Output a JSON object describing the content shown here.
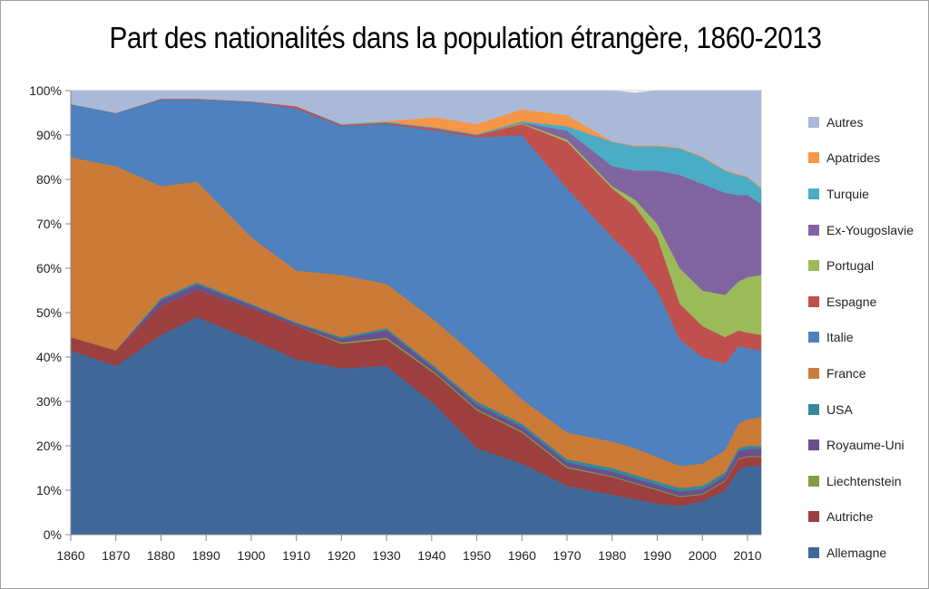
{
  "chart_data": {
    "type": "area",
    "stacked": true,
    "title": "Part des nationalités dans la population étrangère, 1860-2013",
    "xlabel": "",
    "ylabel": "",
    "xlim": [
      1860,
      2013
    ],
    "ylim": [
      0,
      100
    ],
    "x_ticks": [
      "1860",
      "1870",
      "1880",
      "1890",
      "1900",
      "1910",
      "1920",
      "1930",
      "1940",
      "1950",
      "1960",
      "1970",
      "1980",
      "1990",
      "2000",
      "2010"
    ],
    "y_ticks": [
      "0%",
      "10%",
      "20%",
      "30%",
      "40%",
      "50%",
      "60%",
      "70%",
      "80%",
      "90%",
      "100%"
    ],
    "legend_position": "right",
    "x": [
      1860,
      1870,
      1880,
      1888,
      1900,
      1910,
      1920,
      1930,
      1941,
      1950,
      1960,
      1970,
      1980,
      1985,
      1990,
      1995,
      2000,
      2005,
      2008,
      2010,
      2013
    ],
    "series": [
      {
        "name": "Allemagne",
        "color": "#3f6899",
        "values": [
          41.5,
          38,
          45,
          49,
          44,
          39.5,
          37.5,
          38,
          29,
          19.5,
          16,
          11,
          9,
          8,
          7,
          6.5,
          7.5,
          10,
          14.5,
          15.5,
          15.5
        ]
      },
      {
        "name": "Autriche",
        "color": "#9c3f3e",
        "values": [
          3,
          3.5,
          6.5,
          6,
          7,
          7.5,
          5.5,
          6,
          7,
          8.5,
          7,
          4,
          4,
          3.5,
          3,
          2,
          1.5,
          2,
          2.5,
          2,
          2
        ]
      },
      {
        "name": "Liechtenstein",
        "color": "#82a041",
        "values": [
          0,
          0,
          0,
          0,
          0,
          0,
          0.3,
          0.4,
          0.3,
          0.3,
          0.3,
          0.3,
          0.2,
          0.2,
          0.2,
          0.2,
          0.2,
          0.2,
          0.2,
          0.2,
          0.2
        ]
      },
      {
        "name": "Royaume-Uni",
        "color": "#6a4f8c",
        "values": [
          0,
          0,
          1.3,
          1.3,
          0.7,
          0.5,
          0.8,
          1.6,
          0.8,
          1,
          1,
          1,
          1,
          1,
          1,
          1,
          1,
          1,
          1.6,
          1.6,
          1.6
        ]
      },
      {
        "name": "USA",
        "color": "#35889e",
        "values": [
          0,
          0,
          0.5,
          0.5,
          0.3,
          0.3,
          0.4,
          0.5,
          0.5,
          0.7,
          0.7,
          0.7,
          0.8,
          0.8,
          0.8,
          0.8,
          0.8,
          0.8,
          0.7,
          0.7,
          0.7
        ]
      },
      {
        "name": "France",
        "color": "#cb7b37",
        "values": [
          40.5,
          41.5,
          25.2,
          22.7,
          15,
          11.7,
          14,
          10,
          10.4,
          10,
          5.5,
          6,
          6,
          6,
          5.5,
          5,
          5,
          5,
          5.5,
          6,
          6.5
        ]
      },
      {
        "name": "Italie",
        "color": "#4e81bd",
        "values": [
          12,
          12,
          19.5,
          18.5,
          30.5,
          36.5,
          33.5,
          36,
          43,
          49.5,
          59.5,
          55,
          46,
          42.5,
          37.5,
          28.5,
          24,
          19.5,
          17.5,
          16,
          15
        ]
      },
      {
        "name": "Espagne",
        "color": "#c0504d",
        "values": [
          0,
          0,
          0.2,
          0.2,
          0.1,
          0.5,
          0.3,
          0.3,
          0.5,
          0.5,
          2.5,
          10.5,
          11,
          12,
          12,
          8,
          7,
          6,
          3.5,
          3.5,
          3.5
        ]
      },
      {
        "name": "Portugal",
        "color": "#9bbb59",
        "values": [
          0,
          0,
          0,
          0,
          0,
          0,
          0,
          0,
          0,
          0,
          0.2,
          0.5,
          0.5,
          1.5,
          3,
          8,
          8,
          9.5,
          11,
          12.5,
          13.5
        ]
      },
      {
        "name": "Ex-Yougoslavie",
        "color": "#8064a2",
        "values": [
          0,
          0,
          0,
          0,
          0,
          0,
          0,
          0,
          0,
          0,
          0.1,
          2,
          4.5,
          6.5,
          12,
          21,
          24,
          23,
          19.5,
          18.5,
          16
        ]
      },
      {
        "name": "Turquie",
        "color": "#4bacc6",
        "values": [
          0,
          0,
          0,
          0,
          0,
          0,
          0.2,
          0.2,
          0.2,
          0.2,
          0.3,
          1,
          5.5,
          5.5,
          5.5,
          6,
          6,
          5,
          4.5,
          4,
          3.5
        ]
      },
      {
        "name": "Apatrides",
        "color": "#f79646",
        "values": [
          0,
          0,
          0,
          0,
          0,
          0,
          0,
          0.2,
          2.3,
          2.3,
          2.7,
          2.5,
          0.1,
          0.2,
          0.2,
          0.2,
          0.2,
          0.2,
          0.2,
          0.2,
          0.2
        ]
      },
      {
        "name": "Autres",
        "color": "#aab9d7",
        "values": [
          3,
          5,
          1.8,
          1.8,
          2.4,
          3.5,
          7.5,
          6.8,
          6,
          7.5,
          4.2,
          5.5,
          11.4,
          11.8,
          12.3,
          12.8,
          14.8,
          17.8,
          18.8,
          19.3,
          21.8
        ]
      }
    ]
  }
}
